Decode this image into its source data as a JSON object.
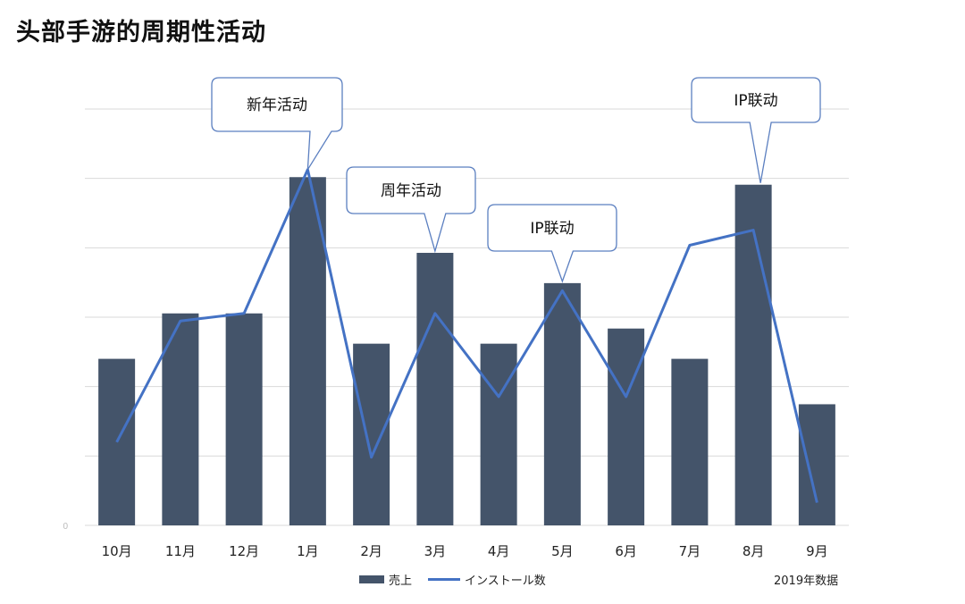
{
  "page": {
    "title": "头部手游的周期性活动"
  },
  "chart_data": {
    "type": "bar",
    "categories": [
      "10月",
      "11月",
      "12月",
      "1月",
      "2月",
      "3月",
      "4月",
      "5月",
      "6月",
      "7月",
      "8月",
      "9月"
    ],
    "series": [
      {
        "name": "売上",
        "kind": "bar",
        "color": "#44546a",
        "values": [
          22,
          28,
          28,
          46,
          24,
          36,
          24,
          32,
          26,
          22,
          45,
          16
        ]
      },
      {
        "name": "インストール数",
        "kind": "line",
        "color": "#4472c4",
        "values": [
          11,
          27,
          28,
          47,
          9,
          28,
          17,
          31,
          17,
          37,
          39,
          3
        ]
      }
    ],
    "y_tick_labels": [
      "0"
    ],
    "ylim": [
      0,
      55
    ],
    "grid": true,
    "legend": "bottom-center",
    "annotations": [
      {
        "text": "新年活动",
        "category": "1月"
      },
      {
        "text": "周年活动",
        "category": "3月"
      },
      {
        "text": "IP联动",
        "category": "5月"
      },
      {
        "text": "IP联动",
        "category": "8月"
      }
    ],
    "note": "2019年数据"
  }
}
